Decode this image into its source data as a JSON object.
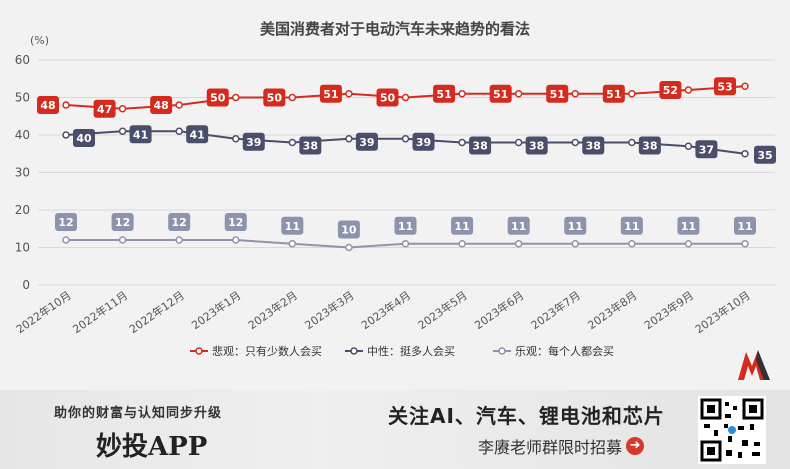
{
  "chart_data": {
    "type": "line",
    "title": "美国消费者对于电动汽车未来趋势的看法",
    "unit": "(%)",
    "ylim": [
      0,
      60
    ],
    "yticks": [
      0,
      10,
      20,
      30,
      40,
      50,
      60
    ],
    "categories": [
      "2022年10月",
      "2022年11月",
      "2022年12月",
      "2023年1月",
      "2023年2月",
      "2023年3月",
      "2023年4月",
      "2023年5月",
      "2023年6月",
      "2023年7月",
      "2023年8月",
      "2023年9月",
      "2023年10月"
    ],
    "xtick_labels": [
      "2022年10月",
      "2022年11月",
      "2022年12月",
      "2023年1月",
      "2023年2月",
      "2023年3月",
      "2023年4月",
      "2023年5月",
      "2023年6月",
      "2023年7月",
      "2023年8月",
      "2023年9月",
      "2023年10月"
    ],
    "series": [
      {
        "name": "悲观：只有少数人会买",
        "color": "#d42b1e",
        "values": [
          48,
          47,
          48,
          50,
          50,
          51,
          50,
          51,
          51,
          51,
          51,
          52,
          53
        ]
      },
      {
        "name": "中性：挺多人会买",
        "color": "#4a4e6a",
        "values": [
          40,
          41,
          41,
          39,
          38,
          39,
          39,
          38,
          38,
          38,
          38,
          37,
          35
        ]
      },
      {
        "name": "乐观：每个人都会买",
        "color": "#8e93ad",
        "values": [
          12,
          12,
          12,
          12,
          11,
          10,
          11,
          11,
          11,
          11,
          11,
          11,
          11
        ]
      }
    ],
    "grid": true,
    "legend": "bottom"
  },
  "footer": {
    "slogan": "助你的财富与认知同步升级",
    "app_name": "妙投APP",
    "headline": "关注AI、汽车、锂电池和芯片",
    "recruit": "李赓老师群限时招募"
  }
}
